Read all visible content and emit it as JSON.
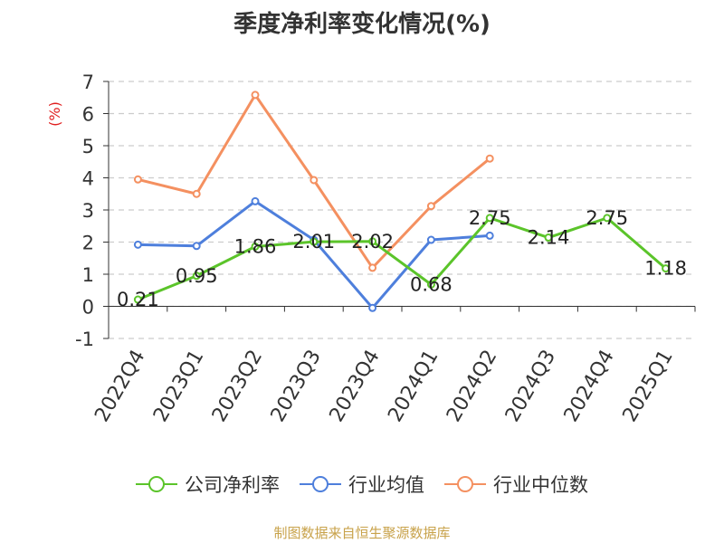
{
  "title": "季度净利率变化情况(%)",
  "source": "制图数据来自恒生聚源数据库",
  "chart_data": {
    "type": "line",
    "categories": [
      "2022Q4",
      "2023Q1",
      "2023Q2",
      "2023Q3",
      "2023Q4",
      "2024Q1",
      "2024Q2",
      "2024Q3",
      "2024Q4",
      "2025Q1"
    ],
    "ylabel": "(%)",
    "ylim": [
      -1,
      7
    ],
    "yticks": [
      "-1",
      "0",
      "1",
      "2",
      "3",
      "4",
      "5",
      "6",
      "7"
    ],
    "grid": true,
    "legend": "bottom",
    "series": [
      {
        "name": "公司净利率",
        "color": "#5bc42a",
        "values": [
          0.21,
          0.95,
          1.86,
          2.01,
          2.02,
          0.68,
          2.75,
          2.14,
          2.75,
          1.18
        ],
        "labels": [
          "0.21",
          "0.95",
          "1.86",
          "2.01",
          "2.02",
          "0.68",
          "2.75",
          "2.14",
          "2.75",
          "1.18"
        ]
      },
      {
        "name": "行业均值",
        "color": "#4e7fdc",
        "values": [
          1.92,
          1.88,
          3.27,
          2.07,
          -0.05,
          2.07,
          2.2,
          null,
          null,
          null
        ]
      },
      {
        "name": "行业中位数",
        "color": "#f49060",
        "values": [
          3.95,
          3.5,
          6.58,
          3.93,
          1.2,
          3.12,
          4.6,
          null,
          null,
          null
        ]
      }
    ]
  }
}
